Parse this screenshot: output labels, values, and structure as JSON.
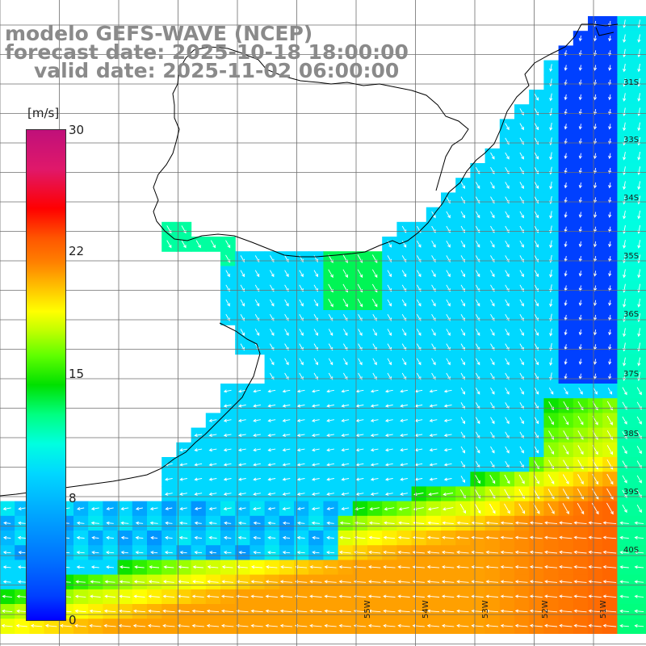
{
  "title": {
    "line1": "modelo GEFS-WAVE (NCEP)",
    "line2": "forecast date: 2025-10-18 18:00:00",
    "line3": "valid date: 2025-11-02 06:00:00"
  },
  "colorbar": {
    "unit": "[m/s]",
    "ticks": [
      "30",
      "22",
      "15",
      "8",
      "0"
    ],
    "tick_values": [
      30,
      22,
      15,
      8,
      0
    ],
    "min": 0,
    "max": 30
  },
  "map": {
    "lat_labels": [
      "31S",
      "33S",
      "34S",
      "35S",
      "36S",
      "37S",
      "38S",
      "39S",
      "40S"
    ],
    "lon_labels": [
      "55W",
      "54W",
      "53W",
      "52W",
      "51W"
    ],
    "colors": {
      "land": "#ffffff",
      "coast": "#000000",
      "grid": "#6e6e6e",
      "arrows": "#ffffff",
      "title_text": "#8a8a8a"
    }
  }
}
